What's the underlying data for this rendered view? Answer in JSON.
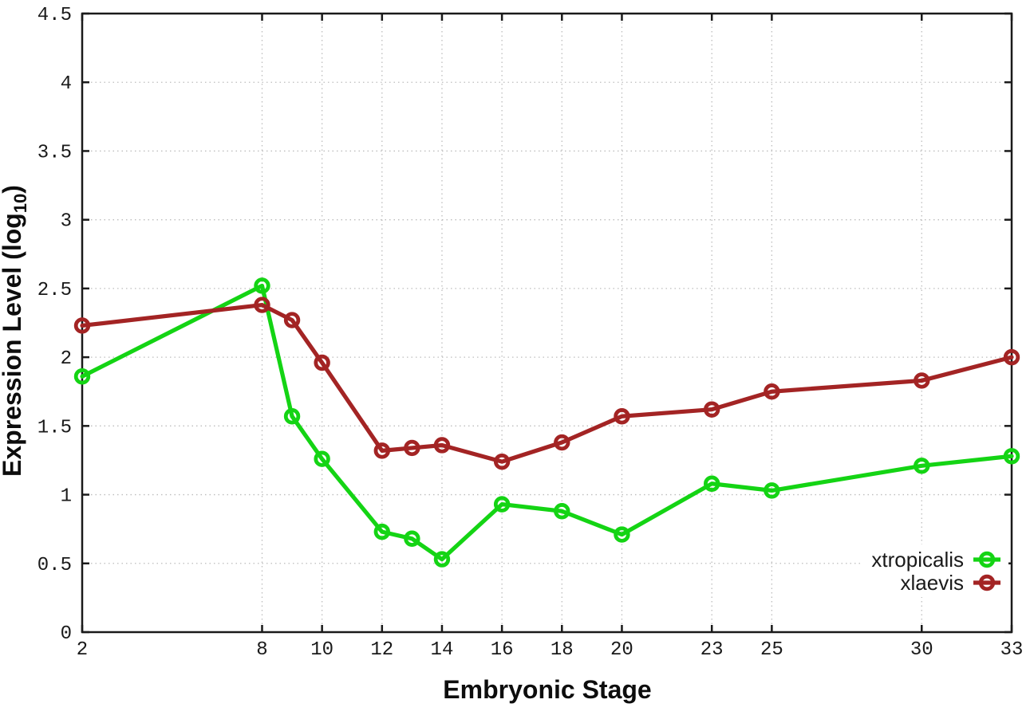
{
  "chart_data": {
    "type": "line",
    "title": "",
    "xlabel": "Embryonic Stage",
    "ylabel": "Expression Level (log10)",
    "ylabel_parts": {
      "pre": "Expression Level (log",
      "sub": "10",
      "post": ")"
    },
    "x": [
      2,
      8,
      9,
      10,
      12,
      13,
      14,
      16,
      18,
      20,
      23,
      25,
      30,
      33
    ],
    "xlim": [
      2,
      33
    ],
    "ylim": [
      0,
      4.5
    ],
    "xticks": [
      2,
      8,
      10,
      12,
      14,
      16,
      18,
      20,
      23,
      25,
      30,
      33
    ],
    "xtick_labels": [
      "2",
      "8",
      "10",
      "12",
      "14",
      "16",
      "18",
      "20",
      "23",
      "25",
      "30",
      "33"
    ],
    "yticks": [
      0,
      0.5,
      1,
      1.5,
      2,
      2.5,
      3,
      3.5,
      4,
      4.5
    ],
    "ytick_labels": [
      "0",
      "0.5",
      "1",
      "1.5",
      "2",
      "2.5",
      "3",
      "3.5",
      "4",
      "4.5"
    ],
    "grid": true,
    "legend_position": "bottom-right-inside",
    "marker": "open-circle",
    "series": [
      {
        "name": "xtropicalis",
        "color": "#14d414",
        "values": [
          1.86,
          2.52,
          1.57,
          1.26,
          0.73,
          0.68,
          0.53,
          0.93,
          0.88,
          0.71,
          1.08,
          1.03,
          1.21,
          1.28
        ]
      },
      {
        "name": "xlaevis",
        "color": "#a32424",
        "values": [
          2.23,
          2.38,
          2.27,
          1.96,
          1.32,
          1.34,
          1.36,
          1.24,
          1.38,
          1.57,
          1.62,
          1.75,
          1.83,
          2.0
        ]
      }
    ]
  },
  "colors": {
    "background": "#ffffff",
    "plot_border": "#1a1a1a",
    "gridline": "#bdbdbd",
    "tick": "#1a1a1a",
    "text": "#1a1a1a"
  }
}
